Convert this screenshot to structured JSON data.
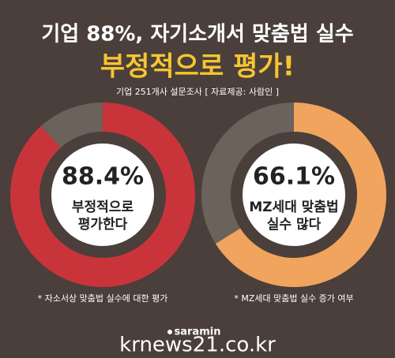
{
  "header": {
    "title": "기업 88%, 자기소개서 맞춤법 실수",
    "highlight": "부정적으로 평가!",
    "source": "기업 251개사 설문조사 [ 자료제공: 사람인 ]"
  },
  "chart_data": [
    {
      "type": "donut",
      "values": [
        88.4,
        11.6
      ],
      "colors": [
        "#c9343a",
        "#6a625b"
      ],
      "value_label": "88.4%",
      "caption": [
        "부정적으로",
        "평가한다"
      ],
      "note": "* 자소서상 맞춤법 실수에 대한 평가"
    },
    {
      "type": "donut",
      "values": [
        66.1,
        33.9
      ],
      "colors": [
        "#f1a45e",
        "#6a625b"
      ],
      "value_label": "66.1%",
      "caption": [
        "MZ세대 맞춤법",
        "실수 많다"
      ],
      "note": "* MZ세대 맞춤법 실수 증가 여부"
    }
  ],
  "footer": {
    "logo": "saramin",
    "watermark": "krnews21.co.kr"
  }
}
